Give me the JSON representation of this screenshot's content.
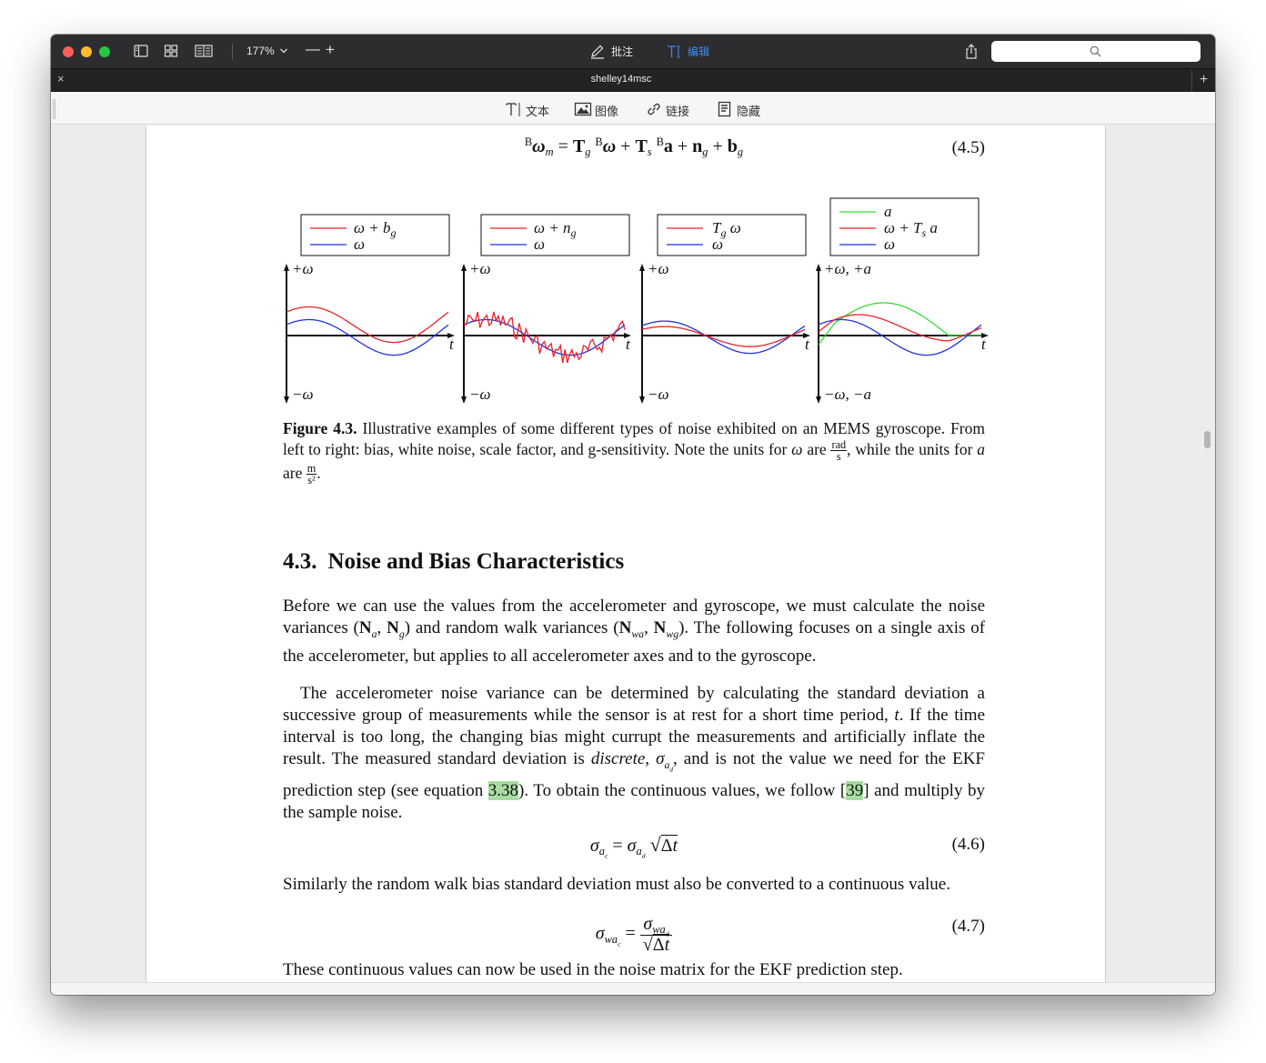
{
  "toolbar": {
    "zoom": "177%",
    "zoom_out": "—",
    "zoom_in": "+",
    "annotate_label": "批注",
    "edit_label": "编辑"
  },
  "tab": {
    "title": "shelley14msc",
    "close": "×",
    "add": "+"
  },
  "edit_toolbar": {
    "text_label": "文本",
    "image_label": "图像",
    "link_label": "链接",
    "hide_label": "隐藏"
  },
  "document": {
    "eq_4_5_number": "(4.5)",
    "eq_4_6_number": "(4.6)",
    "eq_4_7_number": "(4.7)",
    "caption_bold": "Figure 4.3.",
    "caption_part1": " Illustrative examples of some different types of noise exhibited on an MEMS gyroscope. From left to right: bias, white noise, scale factor, and g-sensitivity. Note the units for ",
    "caption_omega": "ω",
    "caption_part2": " are ",
    "caption_rad": "rad",
    "caption_s": "s",
    "caption_part3": ", while the units for ",
    "caption_a": "a",
    "caption_part4": " are ",
    "caption_m": "m",
    "caption_s2": "s²",
    "caption_part5": ".",
    "section_number": "4.3.",
    "section_title": "Noise and Bias Characteristics",
    "p1_a": "Before we can use the values from the accelerometer and gyroscope, we must calculate the noise variances (",
    "p1_b": ") and random walk variances (",
    "p1_c": "). The following focuses on a single axis of the accelerometer, but applies to all accelerometer axes and to the gyroscope.",
    "p2_a": "The accelerometer noise variance can be determined by calculating the standard deviation a successive group of measurements while the sensor is at rest for a short time period, ",
    "p2_t": "t",
    "p2_b": ". If the time interval is too long, the changing bias might currupt the measurements and artificially inflate the result. The measured standard deviation is ",
    "p2_discrete": "discrete",
    "p2_c": ", and is not the value we need for the EKF prediction step (see equation ",
    "p2_ref_eq": "3.38",
    "p2_d": "). To obtain the continuous values, we follow [",
    "p2_ref_cite": "39",
    "p2_e": "] and multiply by the sample noise.",
    "p3": "Similarly the random walk bias standard deviation must also be converted to a continuous value.",
    "p4": "These continuous values can now be used in the noise matrix for the EKF prediction step."
  },
  "figure": {
    "panels": [
      {
        "legend": [
          "ω + b_g",
          "ω"
        ],
        "y_top": "+ω",
        "y_bottom": "−ω",
        "x_label": "t"
      },
      {
        "legend": [
          "ω + n_g",
          "ω"
        ],
        "y_top": "+ω",
        "y_bottom": "−ω",
        "x_label": "t"
      },
      {
        "legend": [
          "T_g ω",
          "ω"
        ],
        "y_top": "+ω",
        "y_bottom": "−ω",
        "x_label": "t"
      },
      {
        "legend": [
          "a",
          "ω + T_s a",
          "ω"
        ],
        "y_top": "+ω, +a",
        "y_bottom": "−ω, −a",
        "x_label": "t"
      }
    ],
    "colors": {
      "red": "#e8222a",
      "blue": "#2233dd",
      "green": "#33dd33"
    }
  }
}
